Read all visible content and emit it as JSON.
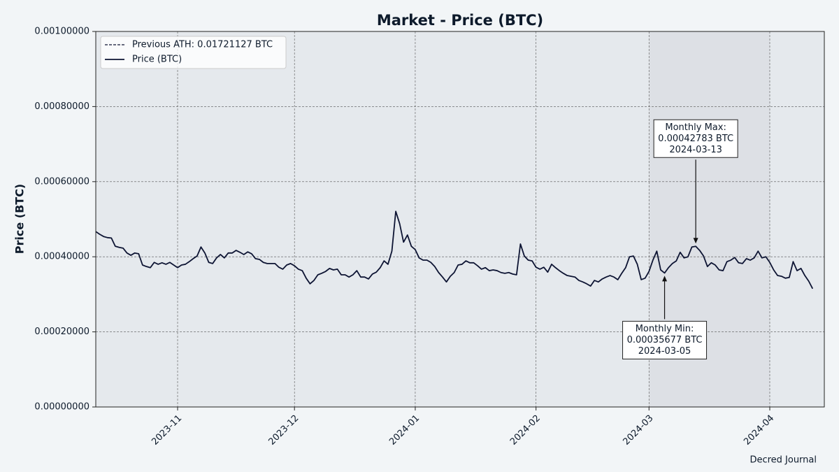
{
  "chart_data": {
    "type": "line",
    "title": "Market - Price (BTC)",
    "ylabel": "Price (BTC)",
    "footer": "Decred Journal",
    "ylim": [
      0,
      0.001
    ],
    "yticks": [
      {
        "value": 0,
        "label": "0.00000000"
      },
      {
        "value": 0.0002,
        "label": "0.00020000"
      },
      {
        "value": 0.0004,
        "label": "0.00040000"
      },
      {
        "value": 0.0006,
        "label": "0.00060000"
      },
      {
        "value": 0.0008,
        "label": "0.00080000"
      },
      {
        "value": 0.001,
        "label": "0.00100000"
      }
    ],
    "xlim": [
      "2023-10-11",
      "2024-04-15"
    ],
    "xticks": [
      {
        "value": "2023-11-01",
        "label": "2023-11"
      },
      {
        "value": "2023-12-01",
        "label": "2023-12"
      },
      {
        "value": "2024-01-01",
        "label": "2024-01"
      },
      {
        "value": "2024-02-01",
        "label": "2024-02"
      },
      {
        "value": "2024-03-01",
        "label": "2024-03"
      },
      {
        "value": "2024-04-01",
        "label": "2024-04"
      }
    ],
    "grid": true,
    "legend": "upper left",
    "highlight": {
      "from": "2024-03-01",
      "to": "2024-04-01",
      "color": "#dde0e5"
    },
    "reference_lines": [
      {
        "name": "Previous ATH: 0.01721127 BTC",
        "value": 0.01721127,
        "style": "dashed",
        "color": "#0d1433"
      }
    ],
    "x": [
      "2023-10-11",
      "2023-10-12",
      "2023-10-13",
      "2023-10-14",
      "2023-10-15",
      "2023-10-16",
      "2023-10-17",
      "2023-10-18",
      "2023-10-19",
      "2023-10-20",
      "2023-10-21",
      "2023-10-22",
      "2023-10-23",
      "2023-10-24",
      "2023-10-25",
      "2023-10-26",
      "2023-10-27",
      "2023-10-28",
      "2023-10-29",
      "2023-10-30",
      "2023-10-31",
      "2023-11-01",
      "2023-11-02",
      "2023-11-03",
      "2023-11-04",
      "2023-11-05",
      "2023-11-06",
      "2023-11-07",
      "2023-11-08",
      "2023-11-09",
      "2023-11-10",
      "2023-11-11",
      "2023-11-12",
      "2023-11-13",
      "2023-11-14",
      "2023-11-15",
      "2023-11-16",
      "2023-11-17",
      "2023-11-18",
      "2023-11-19",
      "2023-11-20",
      "2023-11-21",
      "2023-11-22",
      "2023-11-23",
      "2023-11-24",
      "2023-11-25",
      "2023-11-26",
      "2023-11-27",
      "2023-11-28",
      "2023-11-29",
      "2023-11-30",
      "2023-12-01",
      "2023-12-02",
      "2023-12-03",
      "2023-12-04",
      "2023-12-05",
      "2023-12-06",
      "2023-12-07",
      "2023-12-08",
      "2023-12-09",
      "2023-12-10",
      "2023-12-11",
      "2023-12-12",
      "2023-12-13",
      "2023-12-14",
      "2023-12-15",
      "2023-12-16",
      "2023-12-17",
      "2023-12-18",
      "2023-12-19",
      "2023-12-20",
      "2023-12-21",
      "2023-12-22",
      "2023-12-23",
      "2023-12-24",
      "2023-12-25",
      "2023-12-26",
      "2023-12-27",
      "2023-12-28",
      "2023-12-29",
      "2023-12-30",
      "2023-12-31",
      "2024-01-01",
      "2024-01-02",
      "2024-01-03",
      "2024-01-04",
      "2024-01-05",
      "2024-01-06",
      "2024-01-07",
      "2024-01-08",
      "2024-01-09",
      "2024-01-10",
      "2024-01-11",
      "2024-01-12",
      "2024-01-13",
      "2024-01-14",
      "2024-01-15",
      "2024-01-16",
      "2024-01-17",
      "2024-01-18",
      "2024-01-19",
      "2024-01-20",
      "2024-01-21",
      "2024-01-22",
      "2024-01-23",
      "2024-01-24",
      "2024-01-25",
      "2024-01-26",
      "2024-01-27",
      "2024-01-28",
      "2024-01-29",
      "2024-01-30",
      "2024-01-31",
      "2024-02-01",
      "2024-02-02",
      "2024-02-03",
      "2024-02-04",
      "2024-02-05",
      "2024-02-06",
      "2024-02-07",
      "2024-02-08",
      "2024-02-09",
      "2024-02-10",
      "2024-02-11",
      "2024-02-12",
      "2024-02-13",
      "2024-02-14",
      "2024-02-15",
      "2024-02-16",
      "2024-02-17",
      "2024-02-18",
      "2024-02-19",
      "2024-02-20",
      "2024-02-21",
      "2024-02-22",
      "2024-02-23",
      "2024-02-24",
      "2024-02-25",
      "2024-02-26",
      "2024-02-27",
      "2024-02-28",
      "2024-02-29",
      "2024-03-01",
      "2024-03-02",
      "2024-03-03",
      "2024-03-04",
      "2024-03-05",
      "2024-03-06",
      "2024-03-07",
      "2024-03-08",
      "2024-03-09",
      "2024-03-10",
      "2024-03-11",
      "2024-03-12",
      "2024-03-13",
      "2024-03-14",
      "2024-03-15",
      "2024-03-16",
      "2024-03-17",
      "2024-03-18",
      "2024-03-19",
      "2024-03-20",
      "2024-03-21",
      "2024-03-22",
      "2024-03-23",
      "2024-03-24",
      "2024-03-25",
      "2024-03-26",
      "2024-03-27",
      "2024-03-28",
      "2024-03-29",
      "2024-03-30",
      "2024-03-31",
      "2024-04-01",
      "2024-04-02",
      "2024-04-03",
      "2024-04-04",
      "2024-04-05",
      "2024-04-06",
      "2024-04-07",
      "2024-04-08",
      "2024-04-09",
      "2024-04-10",
      "2024-04-11",
      "2024-04-12"
    ],
    "series": [
      {
        "name": "Price (BTC)",
        "color": "#0d1433",
        "values": [
          0.000467,
          0.00046,
          0.000454,
          0.000451,
          0.00045,
          0.000428,
          0.000425,
          0.000423,
          0.00041,
          0.000404,
          0.00041,
          0.000408,
          0.000378,
          0.000374,
          0.000371,
          0.000385,
          0.00038,
          0.000384,
          0.00038,
          0.000385,
          0.000378,
          0.000371,
          0.000378,
          0.00038,
          0.000387,
          0.000395,
          0.000402,
          0.000426,
          0.00041,
          0.000385,
          0.000382,
          0.000397,
          0.000406,
          0.000397,
          0.00041,
          0.00041,
          0.000417,
          0.000412,
          0.000406,
          0.000413,
          0.000408,
          0.000395,
          0.000393,
          0.000385,
          0.000382,
          0.000382,
          0.000382,
          0.000372,
          0.000367,
          0.000378,
          0.000382,
          0.000376,
          0.000367,
          0.000363,
          0.000343,
          0.000328,
          0.000337,
          0.000352,
          0.000356,
          0.000361,
          0.000369,
          0.000365,
          0.000367,
          0.000352,
          0.000352,
          0.000346,
          0.000352,
          0.000363,
          0.000346,
          0.000346,
          0.000341,
          0.000354,
          0.000359,
          0.000371,
          0.000389,
          0.00038,
          0.000415,
          0.000521,
          0.000488,
          0.000439,
          0.000458,
          0.000428,
          0.000419,
          0.000397,
          0.000391,
          0.000391,
          0.000385,
          0.000374,
          0.000358,
          0.000346,
          0.000333,
          0.000348,
          0.000358,
          0.000378,
          0.00038,
          0.000389,
          0.000384,
          0.000384,
          0.000376,
          0.000367,
          0.000371,
          0.000363,
          0.000365,
          0.000363,
          0.000358,
          0.000356,
          0.000358,
          0.000354,
          0.000352,
          0.000434,
          0.000402,
          0.000391,
          0.000389,
          0.000372,
          0.000367,
          0.000372,
          0.000359,
          0.00038,
          0.000371,
          0.000363,
          0.000356,
          0.00035,
          0.000348,
          0.000346,
          0.000337,
          0.000333,
          0.000328,
          0.000322,
          0.000337,
          0.000333,
          0.000341,
          0.000346,
          0.00035,
          0.000346,
          0.000339,
          0.000356,
          0.000371,
          0.0004,
          0.000402,
          0.00038,
          0.000339,
          0.000343,
          0.000361,
          0.000391,
          0.000415,
          0.000365,
          0.00035677,
          0.000371,
          0.000382,
          0.000389,
          0.000412,
          0.000397,
          0.0004,
          0.000426,
          0.00042783,
          0.000417,
          0.000402,
          0.000374,
          0.000384,
          0.000378,
          0.000365,
          0.000363,
          0.000387,
          0.000391,
          0.000398,
          0.000384,
          0.000382,
          0.000395,
          0.000391,
          0.000397,
          0.000415,
          0.000397,
          0.0004,
          0.000385,
          0.000365,
          0.00035,
          0.000348,
          0.000343,
          0.000345,
          0.000387,
          0.000363,
          0.000369,
          0.00035,
          0.000335,
          0.000315
        ]
      }
    ],
    "annotations": [
      {
        "text": [
          "Monthly Max:",
          "0.00042783 BTC",
          "2024-03-13"
        ],
        "x": "2024-03-13",
        "y": 0.00042783,
        "position": "above"
      },
      {
        "text": [
          "Monthly Min:",
          "0.00035677 BTC",
          "2024-03-05"
        ],
        "x": "2024-03-05",
        "y": 0.00035677,
        "position": "below"
      }
    ]
  }
}
